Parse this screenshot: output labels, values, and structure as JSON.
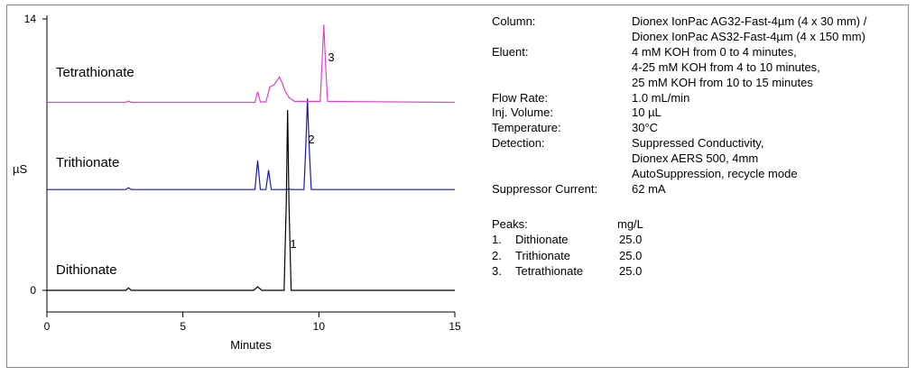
{
  "chart_data": {
    "type": "line",
    "xlabel": "Minutes",
    "ylabel": "µS",
    "xlim": [
      0,
      15
    ],
    "xticks": [
      "0",
      "5",
      "10",
      "15"
    ],
    "yticks": [
      "0",
      "14"
    ],
    "ylim": [
      0,
      14
    ],
    "series": [
      {
        "name": "Dithionate",
        "color": "#000000",
        "peak_label": "1",
        "baseline": 0,
        "points": [
          [
            0,
            0
          ],
          [
            2.9,
            0
          ],
          [
            3.0,
            0.12
          ],
          [
            3.1,
            0
          ],
          [
            7.6,
            0
          ],
          [
            7.75,
            0.18
          ],
          [
            7.9,
            0
          ],
          [
            8.72,
            0
          ],
          [
            8.8,
            4.5
          ],
          [
            8.85,
            9.3
          ],
          [
            8.9,
            4.5
          ],
          [
            8.98,
            0
          ],
          [
            15,
            0
          ]
        ]
      },
      {
        "name": "Trithionate",
        "color": "#1a1aa6",
        "peak_label": "2",
        "baseline": 5.2,
        "points": [
          [
            0,
            5.2
          ],
          [
            2.9,
            5.2
          ],
          [
            3.0,
            5.3
          ],
          [
            3.1,
            5.2
          ],
          [
            7.65,
            5.2
          ],
          [
            7.75,
            6.7
          ],
          [
            7.85,
            5.2
          ],
          [
            8.05,
            5.2
          ],
          [
            8.15,
            6.2
          ],
          [
            8.25,
            5.2
          ],
          [
            8.85,
            5.2
          ],
          [
            8.9,
            5.27
          ],
          [
            8.95,
            5.2
          ],
          [
            9.45,
            5.2
          ],
          [
            9.52,
            7.5
          ],
          [
            9.58,
            9.9
          ],
          [
            9.64,
            7.5
          ],
          [
            9.72,
            5.2
          ],
          [
            15,
            5.2
          ]
        ]
      },
      {
        "name": "Tetrathionate",
        "color": "#e23fd2",
        "peak_label": "3",
        "baseline": 9.7,
        "points": [
          [
            0,
            9.7
          ],
          [
            2.9,
            9.7
          ],
          [
            3.0,
            9.76
          ],
          [
            3.1,
            9.7
          ],
          [
            7.65,
            9.7
          ],
          [
            7.75,
            10.25
          ],
          [
            7.85,
            9.72
          ],
          [
            8.05,
            9.72
          ],
          [
            8.2,
            10.5
          ],
          [
            8.35,
            10.6
          ],
          [
            8.45,
            10.8
          ],
          [
            8.55,
            11.0
          ],
          [
            8.65,
            10.7
          ],
          [
            8.75,
            10.3
          ],
          [
            8.9,
            9.95
          ],
          [
            9.1,
            9.75
          ],
          [
            10.05,
            9.75
          ],
          [
            10.12,
            11.8
          ],
          [
            10.18,
            13.7
          ],
          [
            10.24,
            11.8
          ],
          [
            10.32,
            9.75
          ],
          [
            15,
            9.7
          ]
        ]
      }
    ],
    "annotations": [
      "Tetrathionate",
      "Trithionate",
      "Dithionate"
    ]
  },
  "conditions": [
    {
      "label": "Column:",
      "lines": [
        "Dionex IonPac AG32-Fast-4µm (4 x 30 mm) /",
        "Dionex IonPac AS32-Fast-4µm (4 x 150 mm)"
      ]
    },
    {
      "label": "Eluent:",
      "lines": [
        "4 mM KOH from 0 to 4 minutes,",
        "4-25 mM KOH from 4 to 10 minutes,",
        "25 mM KOH from 10 to 15 minutes"
      ]
    },
    {
      "label": "Flow Rate:",
      "lines": [
        "1.0 mL/min"
      ]
    },
    {
      "label": "Inj. Volume:",
      "lines": [
        "10 µL"
      ]
    },
    {
      "label": "Temperature:",
      "lines": [
        "30°C"
      ]
    },
    {
      "label": "Detection:",
      "lines": [
        "Suppressed Conductivity,",
        "Dionex AERS 500, 4mm",
        "AutoSuppression, recycle mode"
      ]
    },
    {
      "label": "Suppressor Current:",
      "lines": [
        "62 mA"
      ]
    }
  ],
  "peaks": {
    "header": "Peaks:",
    "unit": "mg/L",
    "rows": [
      {
        "num": "1.",
        "name": "Dithionate",
        "value": "25.0"
      },
      {
        "num": "2.",
        "name": "Trithionate",
        "value": "25.0"
      },
      {
        "num": "3.",
        "name": "Tetrathionate",
        "value": "25.0"
      }
    ]
  }
}
